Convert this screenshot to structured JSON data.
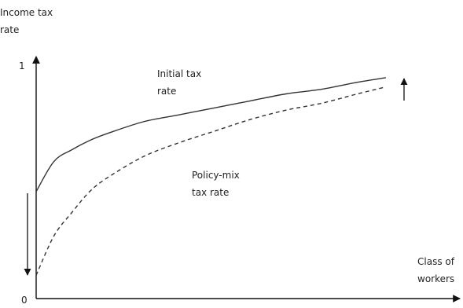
{
  "chart_data": {
    "type": "line",
    "ylabel": "Income tax\nrate",
    "xlabel": "Class of\nworkers",
    "y_ticks": [
      "1",
      "0"
    ],
    "ylim": [
      0,
      1
    ],
    "xlim": [
      0,
      1
    ],
    "grid": false,
    "legend": "none",
    "series": [
      {
        "name": "Initial tax\nrate",
        "style": "solid",
        "color": "#333333",
        "points": [
          [
            0,
            0.46
          ],
          [
            0.05,
            0.59
          ],
          [
            0.1,
            0.64
          ],
          [
            0.15,
            0.68
          ],
          [
            0.2,
            0.71
          ],
          [
            0.3,
            0.76
          ],
          [
            0.4,
            0.79
          ],
          [
            0.5,
            0.82
          ],
          [
            0.6,
            0.85
          ],
          [
            0.7,
            0.88
          ],
          [
            0.8,
            0.9
          ],
          [
            0.9,
            0.93
          ],
          [
            0.98,
            0.95
          ]
        ]
      },
      {
        "name": "Policy-mix\ntax rate",
        "style": "dashed",
        "color": "#333333",
        "points": [
          [
            0,
            0.1
          ],
          [
            0.05,
            0.27
          ],
          [
            0.1,
            0.37
          ],
          [
            0.15,
            0.46
          ],
          [
            0.2,
            0.52
          ],
          [
            0.3,
            0.61
          ],
          [
            0.4,
            0.67
          ],
          [
            0.5,
            0.72
          ],
          [
            0.6,
            0.77
          ],
          [
            0.7,
            0.81
          ],
          [
            0.8,
            0.84
          ],
          [
            0.9,
            0.88
          ],
          [
            0.98,
            0.91
          ]
        ]
      }
    ],
    "annotations": [
      {
        "type": "arrow",
        "direction": "down",
        "meaning": "decrease at lowest class"
      },
      {
        "type": "arrow",
        "direction": "up",
        "meaning": "increase at highest class"
      }
    ]
  }
}
